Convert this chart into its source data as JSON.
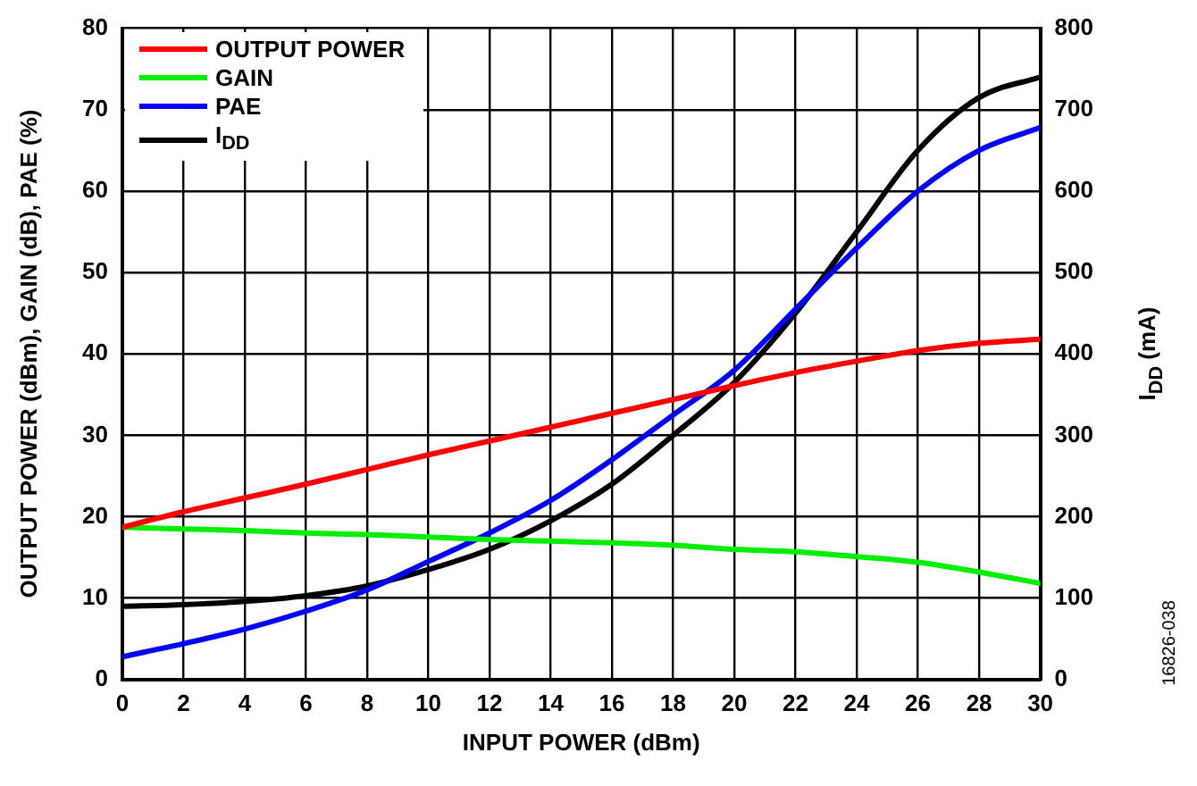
{
  "chart_data": {
    "type": "line",
    "xlabel": "INPUT POWER (dBm)",
    "ylabel": "OUTPUT POWER (dBm), GAIN (dB), PAE (%)",
    "y2label": "I$_{DD}$ (mA)",
    "x": [
      0,
      2,
      4,
      6,
      8,
      10,
      12,
      14,
      16,
      18,
      20,
      22,
      24,
      26,
      28,
      30
    ],
    "series": [
      {
        "name": "OUTPUT POWER",
        "color": "#ff0000",
        "values": [
          18.7,
          20.6,
          22.3,
          24,
          25.8,
          27.6,
          29.3,
          31,
          32.7,
          34.4,
          36.1,
          37.7,
          39.1,
          40.4,
          41.3,
          41.8
        ]
      },
      {
        "name": "GAIN",
        "color": "#00ee00",
        "values": [
          18.7,
          18.5,
          18.3,
          18,
          17.8,
          17.5,
          17.2,
          17,
          16.8,
          16.5,
          16,
          15.7,
          15.1,
          14.4,
          13.2,
          11.8
        ]
      },
      {
        "name": "PAE",
        "color": "#0000ff",
        "values": [
          2.8,
          4.4,
          6.2,
          8.4,
          11,
          14.5,
          18,
          22,
          27,
          32.5,
          38,
          45.5,
          53,
          60,
          65,
          67.8
        ]
      },
      {
        "name": "I$_{DD}$",
        "color": "#000000",
        "axis": "y2",
        "values": [
          90,
          92,
          96,
          103,
          115,
          135,
          160,
          195,
          240,
          300,
          365,
          450,
          550,
          650,
          715,
          740
        ]
      }
    ],
    "xlim": [
      0,
      30
    ],
    "xticks": [
      0,
      2,
      4,
      6,
      8,
      10,
      12,
      14,
      16,
      18,
      20,
      22,
      24,
      26,
      28,
      30
    ],
    "ylim": [
      0,
      80
    ],
    "yticks": [
      0,
      10,
      20,
      30,
      40,
      50,
      60,
      70,
      80
    ],
    "y2lim": [
      0,
      800
    ],
    "y2ticks": [
      0,
      100,
      200,
      300,
      400,
      500,
      600,
      700,
      800
    ],
    "grid": true,
    "legend": "top left",
    "marker": "none",
    "line_style": "solid",
    "annotations": [
      "16826-038"
    ]
  }
}
